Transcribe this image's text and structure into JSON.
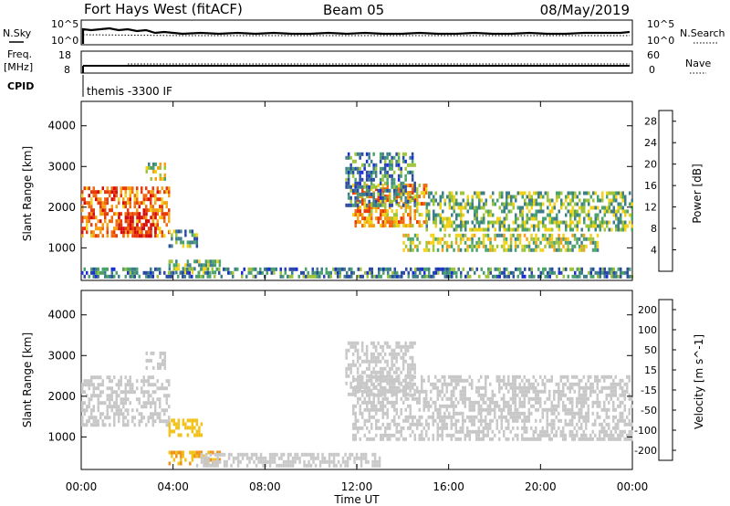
{
  "header": {
    "station": "Fort Hays West (fitACF)",
    "beam": "Beam 05",
    "date": "08/May/2019"
  },
  "top_panels": {
    "nsky_label": "N.Sky",
    "nsky_ticks": [
      "10^5",
      "10^0"
    ],
    "nsearch_label": "N.Search",
    "nsearch_ticks": [
      "10^5",
      "10^0"
    ],
    "freq_label": "Freq.",
    "freq_unit": "[MHz]",
    "freq_ticks": [
      "18",
      "8"
    ],
    "nave_label": "Nave",
    "nave_ticks": [
      "60",
      "0"
    ],
    "cpid_label": "CPID",
    "cpid_text": "themis -3300 IF"
  },
  "colors": {
    "power_scale": [
      "#1a2dd6",
      "#2b4aa6",
      "#3e7d8a",
      "#4aa36c",
      "#9fc43c",
      "#f2d218",
      "#f5a015",
      "#f06a10",
      "#e83a0a",
      "#d60c0c"
    ],
    "velocity_scale": [
      "#2a3fc8",
      "#2f6a7a",
      "#3f9f4c",
      "#7cd04a",
      "#c8c8c8",
      "#c8c8c8",
      "#f2c21a",
      "#f09014",
      "#f05a0c",
      "#e01010"
    ]
  },
  "chart_data": [
    {
      "type": "heatmap",
      "name_printed": "",
      "ylabel": "Slant Range [km]",
      "yticks": [
        "1000",
        "2000",
        "3000",
        "4000"
      ],
      "ylim": [
        200,
        4600
      ],
      "xlim_hours": [
        0,
        24
      ],
      "colorbar_label": "Power [dB]",
      "colorbar_ticks": [
        "4",
        "8",
        "12",
        "16",
        "20",
        "24",
        "28"
      ],
      "colorbar_range": [
        0,
        30
      ],
      "regions": [
        {
          "t0": 0.0,
          "t1": 3.8,
          "r0": 1250,
          "r1": 2450,
          "v": 22
        },
        {
          "t0": 1.6,
          "t1": 3.2,
          "r0": 1250,
          "r1": 1850,
          "v": 28
        },
        {
          "t0": 2.8,
          "t1": 3.6,
          "r0": 2650,
          "r1": 3050,
          "v": 14
        },
        {
          "t0": 3.8,
          "t1": 5.0,
          "r0": 1000,
          "r1": 1400,
          "v": 10
        },
        {
          "t0": 3.8,
          "t1": 6.0,
          "r0": 350,
          "r1": 700,
          "v": 12
        },
        {
          "t0": 0.0,
          "t1": 24.0,
          "r0": 250,
          "r1": 500,
          "v": 8
        },
        {
          "t0": 11.8,
          "t1": 15.0,
          "r0": 1500,
          "r1": 2500,
          "v": 20
        },
        {
          "t0": 14.0,
          "t1": 22.5,
          "r0": 900,
          "r1": 1300,
          "v": 14
        },
        {
          "t0": 15.0,
          "t1": 24.0,
          "r0": 1400,
          "r1": 2300,
          "v": 12
        },
        {
          "t0": 11.5,
          "t1": 14.5,
          "r0": 2000,
          "r1": 3300,
          "v": 8
        }
      ]
    },
    {
      "type": "heatmap",
      "name_printed": "",
      "ylabel": "Slant Range [km]",
      "yticks": [
        "1000",
        "2000",
        "3000",
        "4000"
      ],
      "ylim": [
        200,
        4600
      ],
      "xlim_hours": [
        0,
        24
      ],
      "xlabel": "Time UT",
      "xticks": [
        "00:00",
        "04:00",
        "08:00",
        "12:00",
        "16:00",
        "20:00",
        "00:00"
      ],
      "colorbar_label": "Velocity [m s^-1]",
      "colorbar_ticks": [
        "200",
        "100",
        "50",
        "15",
        "-15",
        "-50",
        "-100",
        "-200"
      ],
      "colorbar_range": [
        -250,
        250
      ],
      "regions": [
        {
          "t0": 0.0,
          "t1": 3.8,
          "r0": 1250,
          "r1": 2450,
          "v": 0
        },
        {
          "t0": 2.8,
          "t1": 3.6,
          "r0": 2650,
          "r1": 3050,
          "v": -30
        },
        {
          "t0": 3.8,
          "t1": 5.2,
          "r0": 1000,
          "r1": 1400,
          "v": -80
        },
        {
          "t0": 3.8,
          "t1": 6.0,
          "r0": 300,
          "r1": 650,
          "v": -100
        },
        {
          "t0": 5.0,
          "t1": 13.0,
          "r0": 250,
          "r1": 550,
          "v": 30
        },
        {
          "t0": 11.8,
          "t1": 24.0,
          "r0": 900,
          "r1": 2500,
          "v": 0
        },
        {
          "t0": 11.5,
          "t1": 14.5,
          "r0": 2000,
          "r1": 3300,
          "v": 5
        }
      ]
    }
  ]
}
